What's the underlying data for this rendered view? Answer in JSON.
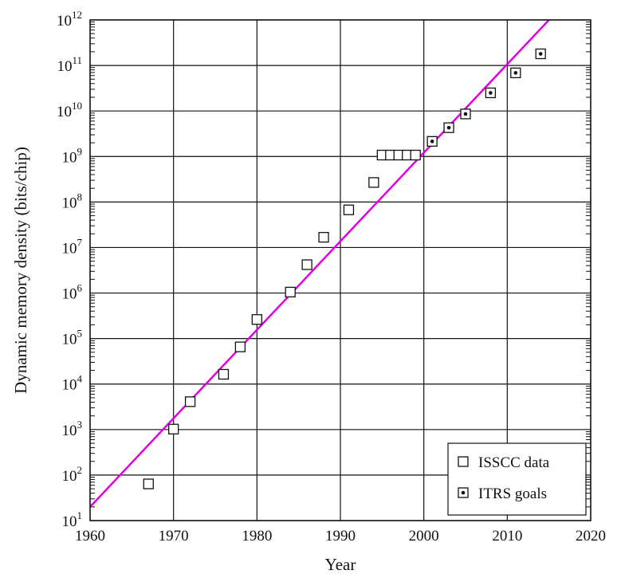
{
  "chart_data": {
    "type": "scatter",
    "title": "",
    "xlabel": "Year",
    "ylabel": "Dynamic memory density (bits/chip)",
    "xlim": [
      1960,
      2020
    ],
    "ylim_exponent": [
      1,
      12
    ],
    "y_scale": "log10",
    "grid": true,
    "legend_position": "bottom-right",
    "x_ticks": [
      "1960",
      "1970",
      "1980",
      "1990",
      "2000",
      "2010",
      "2020"
    ],
    "y_ticks": [
      {
        "base": "10",
        "exp": "1"
      },
      {
        "base": "10",
        "exp": "2"
      },
      {
        "base": "10",
        "exp": "3"
      },
      {
        "base": "10",
        "exp": "4"
      },
      {
        "base": "10",
        "exp": "5"
      },
      {
        "base": "10",
        "exp": "6"
      },
      {
        "base": "10",
        "exp": "7"
      },
      {
        "base": "10",
        "exp": "8"
      },
      {
        "base": "10",
        "exp": "9"
      },
      {
        "base": "10",
        "exp": "10"
      },
      {
        "base": "10",
        "exp": "11"
      },
      {
        "base": "10",
        "exp": "12"
      }
    ],
    "series": [
      {
        "name": "ISSCC data",
        "marker": "open-square",
        "points": [
          {
            "x": 1967,
            "y": 64
          },
          {
            "x": 1970,
            "y": 1024
          },
          {
            "x": 1972,
            "y": 4096
          },
          {
            "x": 1976,
            "y": 16384
          },
          {
            "x": 1978,
            "y": 65536
          },
          {
            "x": 1980,
            "y": 262144
          },
          {
            "x": 1984,
            "y": 1048576
          },
          {
            "x": 1986,
            "y": 4194304
          },
          {
            "x": 1988,
            "y": 16777216
          },
          {
            "x": 1991,
            "y": 67108864
          },
          {
            "x": 1994,
            "y": 268435456
          },
          {
            "x": 1995,
            "y": 1073741824
          },
          {
            "x": 1996,
            "y": 1073741824
          },
          {
            "x": 1997,
            "y": 1073741824
          },
          {
            "x": 1998,
            "y": 1073741824
          },
          {
            "x": 1999,
            "y": 1073741824
          }
        ]
      },
      {
        "name": "ITRS goals",
        "marker": "dotted-square",
        "points": [
          {
            "x": 2001,
            "y": 2147483648
          },
          {
            "x": 2003,
            "y": 4294967296
          },
          {
            "x": 2005,
            "y": 8589934592
          },
          {
            "x": 2008,
            "y": 25000000000
          },
          {
            "x": 2011,
            "y": 68719476736
          },
          {
            "x": 2014,
            "y": 180000000000
          }
        ]
      }
    ],
    "trend_line": {
      "color": "#e000e0",
      "points": [
        {
          "x": 1960,
          "y": 20
        },
        {
          "x": 2015,
          "y": 1000000000000
        }
      ]
    }
  }
}
